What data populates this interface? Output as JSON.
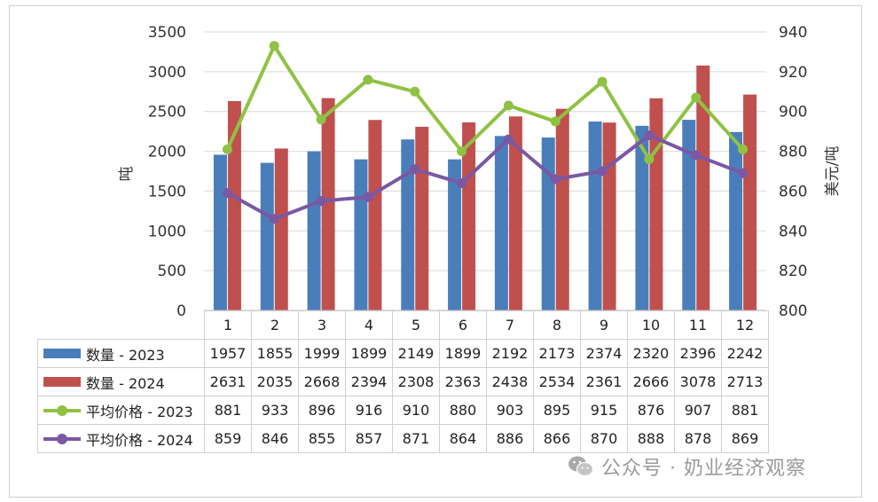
{
  "chart_data": {
    "type": "bar",
    "categories": [
      "1",
      "2",
      "3",
      "4",
      "5",
      "6",
      "7",
      "8",
      "9",
      "10",
      "11",
      "12"
    ],
    "ylabel": "吨",
    "y2label": "美元/吨",
    "ylim": [
      0,
      3500
    ],
    "y2lim": [
      800,
      940
    ],
    "yticks": [
      "0",
      "500",
      "1000",
      "1500",
      "2000",
      "2500",
      "3000",
      "3500"
    ],
    "y2ticks": [
      "800",
      "820",
      "840",
      "860",
      "880",
      "900",
      "920",
      "940"
    ],
    "grid": true,
    "legend": "data table below chart",
    "series": [
      {
        "name": "数量 - 2023",
        "kind": "bar",
        "axis": "left",
        "color": "#4a7ebb",
        "values": [
          1957,
          1855,
          1999,
          1899,
          2149,
          1899,
          2192,
          2173,
          2374,
          2320,
          2396,
          2242
        ]
      },
      {
        "name": "数量 - 2024",
        "kind": "bar",
        "axis": "left",
        "color": "#c0504d",
        "values": [
          2631,
          2035,
          2668,
          2394,
          2308,
          2363,
          2438,
          2534,
          2361,
          2666,
          3078,
          2713
        ]
      },
      {
        "name": "平均价格 - 2023",
        "kind": "line",
        "axis": "right",
        "color": "#8fc243",
        "values": [
          881,
          933,
          896,
          916,
          910,
          880,
          903,
          895,
          915,
          876,
          907,
          881
        ]
      },
      {
        "name": "平均价格 - 2024",
        "kind": "line",
        "axis": "right",
        "color": "#7a58a3",
        "values": [
          859,
          846,
          855,
          857,
          871,
          864,
          886,
          866,
          870,
          888,
          878,
          869
        ]
      }
    ]
  },
  "watermark": {
    "text": "公众号 · 奶业经济观察",
    "icon": "wechat-icon"
  }
}
